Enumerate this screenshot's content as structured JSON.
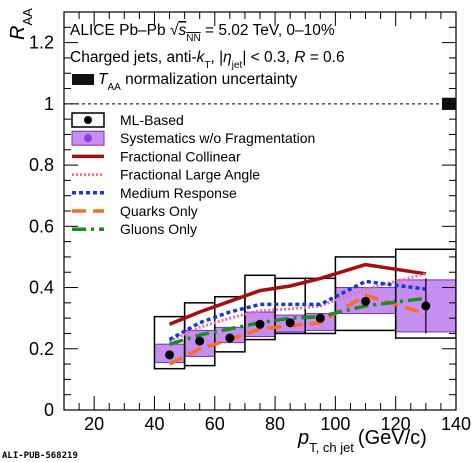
{
  "chart_data": {
    "type": "scatter",
    "title": "",
    "xlabel": {
      "symbol": "p",
      "subscript": "T, ch jet",
      "unit": "(GeV/c)"
    },
    "ylabel": {
      "symbol": "R",
      "subscript": "AA"
    },
    "xlim": [
      10,
      140
    ],
    "ylim": [
      0,
      1.3
    ],
    "xticks": [
      "20",
      "40",
      "60",
      "80",
      "100",
      "120",
      "140"
    ],
    "yticks": [
      "0",
      "0.2",
      "0.4",
      "0.6",
      "0.8",
      "1",
      "1.2"
    ],
    "reference_line": 1,
    "info_lines": {
      "line1_prefix": "ALICE Pb–Pb  ",
      "line1_sqrt": "√",
      "line1_s": "s",
      "line1_nn": "NN",
      "line1_suffix": " = 5.02 TeV, 0–10%",
      "line2_a": "Charged jets, anti-",
      "line2_k": "k",
      "line2_T": "T",
      "line2_b": ", |",
      "line2_eta": "η",
      "line2_jet": "jet",
      "line2_c": "| < 0.3, ",
      "line2_R": "R",
      "line2_d": " = 0.6",
      "line3_T": "T",
      "line3_AA": "AA",
      "line3_text": " normalization uncertainty"
    },
    "taa_uncertainty": 0.02,
    "measured": {
      "name": "ML-Based",
      "points": [
        {
          "x": 45,
          "y": 0.18,
          "sys_lo": 0.135,
          "sys_hi": 0.305,
          "frag_lo": 0.155,
          "frag_hi": 0.215
        },
        {
          "x": 55,
          "y": 0.225,
          "sys_lo": 0.145,
          "sys_hi": 0.35,
          "frag_lo": 0.175,
          "frag_hi": 0.26
        },
        {
          "x": 65,
          "y": 0.235,
          "sys_lo": 0.19,
          "sys_hi": 0.37,
          "frag_lo": 0.22,
          "frag_hi": 0.27
        },
        {
          "x": 75,
          "y": 0.28,
          "sys_lo": 0.23,
          "sys_hi": 0.44,
          "frag_lo": 0.24,
          "frag_hi": 0.32
        },
        {
          "x": 85,
          "y": 0.285,
          "sys_lo": 0.25,
          "sys_hi": 0.43,
          "frag_lo": 0.255,
          "frag_hi": 0.31
        },
        {
          "x": 95,
          "y": 0.3,
          "sys_lo": 0.25,
          "sys_hi": 0.43,
          "frag_lo": 0.26,
          "frag_hi": 0.315
        },
        {
          "x": 110,
          "y": 0.355,
          "sys_lo": 0.26,
          "sys_hi": 0.5,
          "frag_lo": 0.315,
          "frag_hi": 0.4
        },
        {
          "x": 130,
          "y": 0.34,
          "sys_lo": 0.235,
          "sys_hi": 0.525,
          "frag_lo": 0.255,
          "frag_hi": 0.425,
          "stat": 0.09
        }
      ],
      "bin_edges": [
        40,
        50,
        60,
        70,
        80,
        90,
        100,
        120,
        140
      ]
    },
    "series": [
      {
        "name": "Systematics w/o Fragmentation",
        "color": "#b06ae8"
      },
      {
        "name": "Fractional Collinear",
        "color": "#a30e0e",
        "x": [
          45,
          55,
          65,
          75,
          85,
          95,
          110,
          130
        ],
        "y": [
          0.28,
          0.32,
          0.355,
          0.39,
          0.405,
          0.43,
          0.475,
          0.445
        ]
      },
      {
        "name": "Fractional Large Angle",
        "color": "#ee6eaa",
        "x": [
          45,
          55,
          65,
          75,
          85,
          95,
          110,
          130
        ],
        "y": [
          0.225,
          0.27,
          0.3,
          0.325,
          0.33,
          0.34,
          0.395,
          0.445
        ]
      },
      {
        "name": "Medium Response",
        "color": "#1737d8",
        "x": [
          45,
          55,
          65,
          75,
          85,
          95,
          110,
          130
        ],
        "y": [
          0.23,
          0.285,
          0.32,
          0.345,
          0.345,
          0.345,
          0.42,
          0.395
        ]
      },
      {
        "name": "Quarks Only",
        "color": "#ff6a28",
        "x": [
          45,
          55,
          65,
          75,
          85,
          95,
          110,
          130
        ],
        "y": [
          0.15,
          0.2,
          0.23,
          0.265,
          0.275,
          0.285,
          0.375,
          0.315
        ]
      },
      {
        "name": "Gluons Only",
        "color": "#1b8a27",
        "x": [
          45,
          55,
          65,
          75,
          85,
          95,
          110,
          130
        ],
        "y": [
          0.215,
          0.245,
          0.265,
          0.285,
          0.3,
          0.305,
          0.34,
          0.365
        ]
      }
    ],
    "legend_position": "center-left",
    "footer": "ALI-PUB-568219"
  }
}
